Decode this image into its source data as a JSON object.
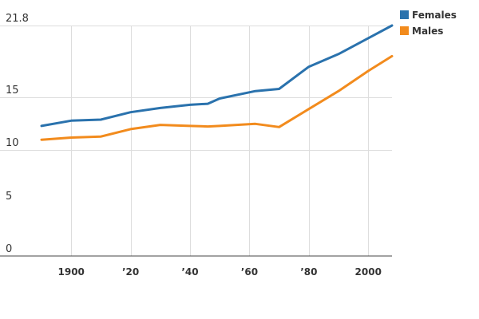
{
  "chart_data": {
    "type": "line",
    "title": "",
    "xlabel": "",
    "ylabel": "",
    "x_range": [
      1890,
      2008
    ],
    "ylim": [
      0,
      21.8
    ],
    "grid": true,
    "legend_position": "top-right",
    "y_ticks": [
      {
        "value": 0,
        "label": "0"
      },
      {
        "value": 5,
        "label": "5"
      },
      {
        "value": 10,
        "label": "10"
      },
      {
        "value": 15,
        "label": "15"
      },
      {
        "value": 21.8,
        "label": "21.8"
      }
    ],
    "y_gridlines": [
      10,
      15,
      21.8
    ],
    "x_ticks": [
      {
        "value": 1900,
        "label": "1900"
      },
      {
        "value": 1920,
        "label": "’20"
      },
      {
        "value": 1940,
        "label": "’40"
      },
      {
        "value": 1960,
        "label": "’60"
      },
      {
        "value": 1980,
        "label": "’80"
      },
      {
        "value": 2000,
        "label": "2000"
      }
    ],
    "series": [
      {
        "name": "Females",
        "color": "#2a72ad",
        "x": [
          1890,
          1900,
          1910,
          1920,
          1930,
          1940,
          1946,
          1950,
          1962,
          1970,
          1980,
          1990,
          2000,
          2008
        ],
        "values": [
          12.3,
          12.8,
          12.9,
          13.6,
          14.0,
          14.3,
          14.4,
          14.9,
          15.6,
          15.8,
          17.9,
          19.1,
          20.6,
          21.8
        ]
      },
      {
        "name": "Males",
        "color": "#f28b1d",
        "x": [
          1890,
          1900,
          1910,
          1920,
          1930,
          1940,
          1946,
          1950,
          1962,
          1970,
          1980,
          1990,
          2000,
          2008
        ],
        "values": [
          11.0,
          11.2,
          11.3,
          12.0,
          12.4,
          12.3,
          12.25,
          12.3,
          12.5,
          12.2,
          13.9,
          15.6,
          17.5,
          18.9
        ]
      }
    ]
  }
}
